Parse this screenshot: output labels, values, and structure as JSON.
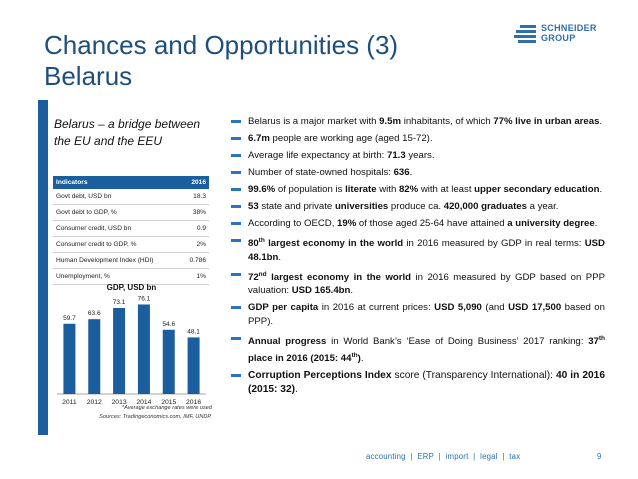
{
  "title": {
    "line1": "Chances and Opportunities (3)",
    "line2": "Belarus"
  },
  "logo": {
    "line1": "SCHNEIDER",
    "line2": "GROUP"
  },
  "colors": {
    "accent": "#1a5e9e",
    "title": "#1e4e7e",
    "bullet": "#2a73c0"
  },
  "sidebar": {
    "bridge_text": "Belarus – a bridge between the EU and the EEU"
  },
  "indicators": {
    "header": [
      "Indicators",
      "2016"
    ],
    "rows": [
      [
        "Govt debt, USD bn",
        "18.3"
      ],
      [
        "Govt debt to GDP, %",
        "38%"
      ],
      [
        "Consumer credit, USD bn",
        "0.9"
      ],
      [
        "Consumer credit to GDP, %",
        "2%"
      ],
      [
        "Human Development Index (HDI)",
        "0.786"
      ],
      [
        "Unemployment, %",
        "1%"
      ]
    ]
  },
  "chart_data": {
    "type": "bar",
    "title": "GDP, USD bn",
    "categories": [
      "2011",
      "2012",
      "2013",
      "2014",
      "2015",
      "2016"
    ],
    "values": [
      59.7,
      63.6,
      73.1,
      76.1,
      54.6,
      48.1
    ],
    "value_labels": [
      "59.7",
      "63.6",
      "73.1",
      "76.1",
      "54.6",
      "48.1"
    ],
    "ylim": [
      0,
      85
    ],
    "xlabel": "",
    "ylabel": "",
    "color": "#1a5e9e"
  },
  "chart_notes": {
    "footnote": "*Average exchange rates were used",
    "sources": "Sources: Tradingeconomics.com, IMF, UNDP."
  },
  "bullets": [
    {
      "parts": [
        [
          "Belarus is a major market with ",
          false
        ],
        [
          "9.5m",
          true
        ],
        [
          " inhabitants, of which ",
          false
        ],
        [
          "77% live in urban areas",
          true
        ],
        [
          ".",
          false
        ]
      ]
    },
    {
      "parts": [
        [
          "6.7m",
          true
        ],
        [
          " people are working age (aged 15-72).",
          false
        ]
      ]
    },
    {
      "parts": [
        [
          "Average life expectancy at birth: ",
          false
        ],
        [
          "71.3",
          true
        ],
        [
          " years.",
          false
        ]
      ]
    },
    {
      "parts": [
        [
          "Number of state-owned hospitals: ",
          false
        ],
        [
          "636",
          true
        ],
        [
          ".",
          false
        ]
      ]
    },
    {
      "parts": [
        [
          "99.6%",
          true
        ],
        [
          " of population is ",
          false
        ],
        [
          "literate",
          true
        ],
        [
          " with ",
          false
        ],
        [
          "82%",
          true
        ],
        [
          " with at least ",
          false
        ],
        [
          "upper secondary education",
          true
        ],
        [
          ".",
          false
        ]
      ]
    },
    {
      "parts": [
        [
          "53",
          true
        ],
        [
          " state and private ",
          false
        ],
        [
          "universities",
          true
        ],
        [
          " produce ca. ",
          false
        ],
        [
          "420,000 graduates",
          true
        ],
        [
          " a year.",
          false
        ]
      ]
    },
    {
      "parts": [
        [
          "According to OECD, ",
          false
        ],
        [
          "19%",
          true
        ],
        [
          " of those aged 25-64 have attained ",
          false
        ],
        [
          "a university degree",
          true
        ],
        [
          ".",
          false
        ]
      ]
    },
    {
      "parts": [
        [
          "80",
          true
        ],
        [
          "th",
          true,
          "sup"
        ],
        [
          " largest economy in the world",
          true
        ],
        [
          " in 2016 measured by GDP in real terms: ",
          false
        ],
        [
          "USD 48.1bn",
          true
        ],
        [
          ".",
          false
        ]
      ]
    },
    {
      "parts": [
        [
          "72",
          true
        ],
        [
          "nd",
          true,
          "sup"
        ],
        [
          " largest economy in the world",
          true
        ],
        [
          " in 2016 measured by GDP based on PPP valuation: ",
          false
        ],
        [
          "USD 165.4bn",
          true
        ],
        [
          ".",
          false
        ]
      ]
    },
    {
      "parts": [
        [
          "GDP per capita",
          true
        ],
        [
          " in 2016 at current prices: ",
          false
        ],
        [
          "USD 5,090",
          true
        ],
        [
          " (and ",
          false
        ],
        [
          "USD 17,500",
          true
        ],
        [
          " based on PPP).",
          false
        ]
      ]
    },
    {
      "parts": [
        [
          "Annual progress",
          true
        ],
        [
          " in World Bank’s ‘Ease of Doing Business’ 2017 ranking: ",
          false
        ],
        [
          "37",
          true
        ],
        [
          "th",
          true,
          "sup"
        ],
        [
          " place in 2016 (2015: 44",
          true
        ],
        [
          "th",
          true,
          "sup"
        ],
        [
          ")",
          true
        ],
        [
          ".",
          false
        ]
      ]
    },
    {
      "big": true,
      "parts": [
        [
          "Corruption Perceptions Index",
          true
        ],
        [
          " score (Transparency International): ",
          false
        ],
        [
          "40 in 2016 (2015: 32)",
          true
        ],
        [
          ".",
          false
        ]
      ]
    }
  ],
  "footer": {
    "links": "accounting  |  ERP  |  import  |  legal  |  tax",
    "page": "9"
  }
}
